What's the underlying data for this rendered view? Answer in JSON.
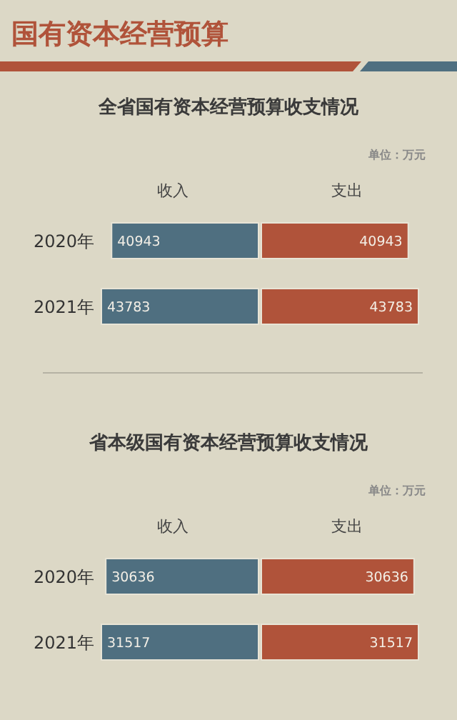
{
  "chart_data": [
    {
      "type": "other",
      "title": "国有资本经营预算"
    },
    {
      "type": "bar",
      "orientation": "horizontal",
      "title": "全省国有资本经营预算收支情况",
      "annotations": [
        "单位：万元"
      ],
      "categories": [
        "2020年",
        "2021年"
      ],
      "legend": "top",
      "data_labels": true,
      "series": [
        {
          "name": "收入",
          "color": "#4f6f80",
          "values": [
            40943,
            43783
          ]
        }
      ]
    },
    {
      "type": "bar",
      "orientation": "horizontal",
      "categories": [
        null,
        null
      ],
      "legend": "top",
      "data_labels": true,
      "series": [
        {
          "name": "支出",
          "color": "#b0533a",
          "values": [
            40943,
            43783
          ]
        }
      ]
    },
    {
      "type": "bar",
      "orientation": "horizontal",
      "title": "省本级国有资本经营预算收支情况",
      "annotations": [
        "单位：万元"
      ],
      "categories": [
        "2020年",
        "2021年"
      ],
      "legend": "top",
      "data_labels": true,
      "series": [
        {
          "name": "收入",
          "color": "#4f6f80",
          "values": [
            30636,
            31517
          ]
        }
      ]
    },
    {
      "type": "bar",
      "orientation": "horizontal",
      "categories": [
        null,
        null
      ],
      "legend": "top",
      "data_labels": true,
      "series": [
        {
          "name": "支出",
          "color": "#b0533a",
          "values": [
            30636,
            31517
          ]
        }
      ]
    }
  ]
}
